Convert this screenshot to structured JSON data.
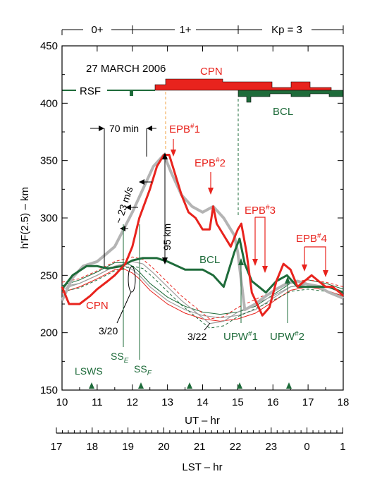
{
  "chart_data": {
    "type": "line",
    "title": "27 MARCH 2006",
    "xlabel": "UT – hr",
    "ylabel": "h'F(2.5) – km",
    "xlim": [
      10,
      18
    ],
    "ylim": [
      150,
      450
    ],
    "x_ticks": [
      10,
      11,
      12,
      13,
      14,
      15,
      16,
      17,
      18
    ],
    "y_ticks": [
      150,
      200,
      250,
      300,
      350,
      400,
      450
    ],
    "grid": false,
    "lst_axis": {
      "label": "LST – hr",
      "ticks": [
        "17",
        "18",
        "19",
        "20",
        "21",
        "22",
        "23",
        "0",
        "1"
      ]
    },
    "kp_segments": [
      {
        "label": "0+",
        "from": 10,
        "to": 12
      },
      {
        "label": "1+",
        "from": 12,
        "to": 15
      },
      {
        "label": "Kp = 3",
        "from": 15,
        "to": 18
      }
    ],
    "series": [
      {
        "name": "CPN",
        "color": "#e8231d",
        "x": [
          10,
          10.2,
          10.5,
          10.8,
          11,
          11.3,
          11.5,
          11.8,
          12,
          12.2,
          12.5,
          12.7,
          12.9,
          13.05,
          13.2,
          13.4,
          13.6,
          13.8,
          14,
          14.2,
          14.3,
          14.4,
          14.6,
          14.8,
          15,
          15.1,
          15.25,
          15.4,
          15.55,
          15.7,
          15.9,
          16.1,
          16.3,
          16.5,
          16.7,
          16.9,
          17.1,
          17.3,
          17.5,
          17.7,
          17.9,
          18
        ],
        "y": [
          240,
          225,
          225,
          232,
          238,
          245,
          250,
          260,
          275,
          300,
          325,
          345,
          355,
          355,
          340,
          320,
          305,
          300,
          290,
          290,
          310,
          295,
          285,
          275,
          290,
          295,
          270,
          235,
          225,
          215,
          222,
          245,
          260,
          255,
          240,
          245,
          250,
          245,
          240,
          240,
          235,
          232
        ]
      },
      {
        "name": "BCL",
        "color": "#1e6b3a",
        "x": [
          10,
          10.3,
          10.7,
          11,
          11.3,
          11.7,
          12,
          12.3,
          12.7,
          13,
          13.5,
          14,
          14.3,
          14.6,
          14.9,
          15.05,
          15.2,
          15.4,
          15.6,
          15.8,
          16.1,
          16.4,
          16.7,
          17,
          17.3,
          17.6,
          18
        ],
        "y": [
          238,
          250,
          258,
          258,
          256,
          258,
          263,
          265,
          265,
          262,
          255,
          255,
          250,
          240,
          270,
          282,
          260,
          245,
          240,
          235,
          245,
          250,
          240,
          240,
          240,
          240,
          235
        ]
      },
      {
        "name": "",
        "color": "#b4b4b4",
        "x": [
          10,
          10.3,
          10.6,
          11,
          11.5,
          12,
          12.3,
          12.6,
          12.9,
          13.1,
          13.4,
          13.7,
          14,
          14.3,
          14.6,
          14.9,
          15,
          15.2,
          15.5,
          15.8,
          16.1,
          16.4,
          16.7,
          17,
          17.3,
          17.6,
          18
        ],
        "y": [
          228,
          248,
          258,
          262,
          275,
          305,
          325,
          345,
          355,
          340,
          320,
          310,
          305,
          310,
          300,
          285,
          270,
          220,
          225,
          232,
          238,
          243,
          245,
          242,
          240,
          235,
          230
        ]
      },
      {
        "name": "3/20",
        "color": "#a0a0a0",
        "x": [
          10,
          10.5,
          11,
          11.5,
          11.8,
          12,
          12.2,
          12.5,
          13,
          13.5,
          14,
          14.5,
          15,
          15.5,
          16,
          16.5,
          17,
          17.5,
          18
        ],
        "y": [
          238,
          243,
          250,
          258,
          258,
          255,
          250,
          240,
          228,
          220,
          215,
          213,
          215,
          220,
          230,
          240,
          243,
          240,
          235
        ]
      },
      {
        "name": "3/22",
        "color": "#a0a0a0",
        "x": [
          10,
          10.5,
          11,
          11.5,
          12,
          12.3,
          12.6,
          13,
          13.4,
          13.8,
          14.2,
          14.6,
          15,
          15.5,
          16,
          16.5,
          17,
          17.5,
          18
        ],
        "y": [
          240,
          243,
          250,
          258,
          262,
          260,
          252,
          240,
          228,
          218,
          208,
          210,
          218,
          225,
          232,
          240,
          242,
          240,
          236
        ]
      }
    ],
    "annotations": {
      "rsf": "RSF",
      "cpn_bar": "CPN",
      "bcl_bar": "BCL",
      "interval": "70 min",
      "drift": "~ 23 m/s",
      "height": "95 km",
      "cpn_curve": "CPN",
      "bcl_curve": "BCL",
      "date_a": "3/20",
      "date_b": "3/22",
      "ss_e": "SS",
      "ss_e_sub": "E",
      "ss_f": "SS",
      "ss_f_sub": "F",
      "lsws": "LSWS",
      "epb1": "EPB",
      "epb1_n": "1",
      "epb2": "EPB",
      "epb2_n": "2",
      "epb3": "EPB",
      "epb3_n": "3",
      "epb4": "EPB",
      "epb4_n": "4",
      "epb_sup": "#",
      "upw1": "UPW",
      "upw1_n": "1",
      "upw2": "UPW",
      "upw2_n": "2",
      "upw_sup": "#"
    }
  }
}
